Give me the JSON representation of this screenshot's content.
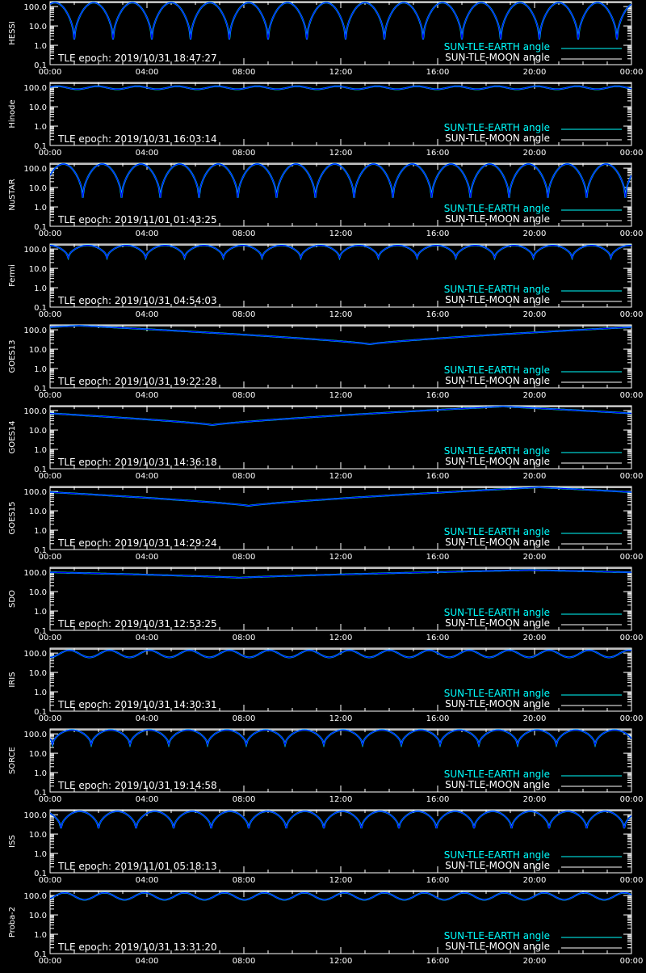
{
  "figure": {
    "background": "#000000",
    "axis_color": "#ffffff",
    "earth_color": "#00ffff",
    "moon_color": "#ffffff",
    "curve_color": "#0000ff"
  },
  "chart_data": [
    {
      "type": "line",
      "ylabel": "HESSI",
      "epoch_text": "TLE epoch: 2019/10/31 18:47:27",
      "x_ticks": [
        "00:00",
        "04:00",
        "08:00",
        "12:00",
        "16:00",
        "20:00",
        "00:00"
      ],
      "y_ticks": [
        "0.1",
        "1.0",
        "10.0",
        "100.0"
      ],
      "y_scale": "log",
      "ylim": [
        0.1,
        180
      ],
      "legend": [
        "SUN-TLE-EARTH angle",
        "SUN-TLE-MOON angle"
      ],
      "series": [
        {
          "kind": "periodic-dips",
          "period_hours": 1.6,
          "phase_hours": 1.0,
          "max": 160,
          "min": 2.0
        },
        {
          "kind": "moon",
          "value": 160
        }
      ]
    },
    {
      "type": "line",
      "ylabel": "Hinode",
      "epoch_text": "TLE epoch: 2019/10/31 16:03:14",
      "x_ticks": [
        "00:00",
        "04:00",
        "08:00",
        "12:00",
        "16:00",
        "20:00",
        "00:00"
      ],
      "y_ticks": [
        "0.1",
        "1.0",
        "10.0",
        "100.0"
      ],
      "y_scale": "log",
      "ylim": [
        0.1,
        180
      ],
      "legend": [
        "SUN-TLE-EARTH angle",
        "SUN-TLE-MOON angle"
      ],
      "series": [
        {
          "kind": "gentle",
          "period_hours": 1.65,
          "phase_hours": 0.3,
          "max": 115,
          "min": 80
        },
        {
          "kind": "moon",
          "value": 160
        }
      ]
    },
    {
      "type": "line",
      "ylabel": "NuSTAR",
      "epoch_text": "TLE epoch: 2019/11/01 01:43:25",
      "x_ticks": [
        "00:00",
        "04:00",
        "08:00",
        "12:00",
        "16:00",
        "20:00",
        "00:00"
      ],
      "y_ticks": [
        "0.1",
        "1.0",
        "10.0",
        "100.0"
      ],
      "y_scale": "log",
      "ylim": [
        0.1,
        180
      ],
      "legend": [
        "SUN-TLE-EARTH angle",
        "SUN-TLE-MOON angle"
      ],
      "series": [
        {
          "kind": "periodic-dips",
          "period_hours": 1.6,
          "phase_hours": 1.35,
          "max": 165,
          "min": 3.0
        },
        {
          "kind": "moon",
          "value": 160
        }
      ]
    },
    {
      "type": "line",
      "ylabel": "Fermi",
      "epoch_text": "TLE epoch: 2019/10/31 04:54:03",
      "x_ticks": [
        "00:00",
        "04:00",
        "08:00",
        "12:00",
        "16:00",
        "20:00",
        "00:00"
      ],
      "y_ticks": [
        "0.1",
        "1.0",
        "10.0",
        "100.0"
      ],
      "y_scale": "log",
      "ylim": [
        0.1,
        180
      ],
      "legend": [
        "SUN-TLE-EARTH angle",
        "SUN-TLE-MOON angle"
      ],
      "series": [
        {
          "kind": "periodic-dips",
          "period_hours": 1.6,
          "phase_hours": 0.75,
          "max": 155,
          "min": 35
        },
        {
          "kind": "moon",
          "value": 160
        }
      ]
    },
    {
      "type": "line",
      "ylabel": "GOES13",
      "epoch_text": "TLE epoch: 2019/10/31 19:22:28",
      "x_ticks": [
        "00:00",
        "04:00",
        "08:00",
        "12:00",
        "16:00",
        "20:00",
        "00:00"
      ],
      "y_ticks": [
        "0.1",
        "1.0",
        "10.0",
        "100.0"
      ],
      "y_scale": "log",
      "ylim": [
        0.1,
        180
      ],
      "legend": [
        "SUN-TLE-EARTH angle",
        "SUN-TLE-MOON angle"
      ],
      "series": [
        {
          "kind": "daily-dip",
          "dip_hour": 13.2,
          "max": 165,
          "min": 18
        },
        {
          "kind": "moon",
          "value": 160
        }
      ]
    },
    {
      "type": "line",
      "ylabel": "GOES14",
      "epoch_text": "TLE epoch: 2019/10/31 14:36:18",
      "x_ticks": [
        "00:00",
        "04:00",
        "08:00",
        "12:00",
        "16:00",
        "20:00",
        "00:00"
      ],
      "y_ticks": [
        "0.1",
        "1.0",
        "10.0",
        "100.0"
      ],
      "y_scale": "log",
      "ylim": [
        0.1,
        180
      ],
      "legend": [
        "SUN-TLE-EARTH angle",
        "SUN-TLE-MOON angle"
      ],
      "series": [
        {
          "kind": "daily-dip",
          "dip_hour": 6.7,
          "max": 165,
          "min": 18
        },
        {
          "kind": "moon",
          "value": 160
        }
      ]
    },
    {
      "type": "line",
      "ylabel": "GOES15",
      "epoch_text": "TLE epoch: 2019/10/31 14:29:24",
      "x_ticks": [
        "00:00",
        "04:00",
        "08:00",
        "12:00",
        "16:00",
        "20:00",
        "00:00"
      ],
      "y_ticks": [
        "0.1",
        "1.0",
        "10.0",
        "100.0"
      ],
      "y_scale": "log",
      "ylim": [
        0.1,
        180
      ],
      "legend": [
        "SUN-TLE-EARTH angle",
        "SUN-TLE-MOON angle"
      ],
      "series": [
        {
          "kind": "daily-dip",
          "dip_hour": 8.2,
          "max": 165,
          "min": 18
        },
        {
          "kind": "moon",
          "value": 160
        }
      ]
    },
    {
      "type": "line",
      "ylabel": "SDO",
      "epoch_text": "TLE epoch: 2019/10/31 12:53:25",
      "x_ticks": [
        "00:00",
        "04:00",
        "08:00",
        "12:00",
        "16:00",
        "20:00",
        "00:00"
      ],
      "y_ticks": [
        "0.1",
        "1.0",
        "10.0",
        "100.0"
      ],
      "y_scale": "log",
      "ylim": [
        0.1,
        180
      ],
      "legend": [
        "SUN-TLE-EARTH angle",
        "SUN-TLE-MOON angle"
      ],
      "series": [
        {
          "kind": "daily-dip",
          "dip_hour": 7.8,
          "max": 130,
          "min": 52
        },
        {
          "kind": "moon",
          "value": 160
        }
      ]
    },
    {
      "type": "line",
      "ylabel": "IRIS",
      "epoch_text": "TLE epoch: 2019/10/31 14:30:31",
      "x_ticks": [
        "00:00",
        "04:00",
        "08:00",
        "12:00",
        "16:00",
        "20:00",
        "00:00"
      ],
      "y_ticks": [
        "0.1",
        "1.0",
        "10.0",
        "100.0"
      ],
      "y_scale": "log",
      "ylim": [
        0.1,
        180
      ],
      "legend": [
        "SUN-TLE-EARTH angle",
        "SUN-TLE-MOON angle"
      ],
      "series": [
        {
          "kind": "gentle",
          "period_hours": 1.65,
          "phase_hours": 0.8,
          "max": 140,
          "min": 60
        },
        {
          "kind": "moon",
          "value": 160
        }
      ]
    },
    {
      "type": "line",
      "ylabel": "SORCE",
      "epoch_text": "TLE epoch: 2019/10/31 19:14:58",
      "x_ticks": [
        "00:00",
        "04:00",
        "08:00",
        "12:00",
        "16:00",
        "20:00",
        "00:00"
      ],
      "y_ticks": [
        "0.1",
        "1.0",
        "10.0",
        "100.0"
      ],
      "y_scale": "log",
      "ylim": [
        0.1,
        180
      ],
      "legend": [
        "SUN-TLE-EARTH angle",
        "SUN-TLE-MOON angle"
      ],
      "series": [
        {
          "kind": "periodic-dips",
          "period_hours": 1.6,
          "phase_hours": 0.1,
          "max": 160,
          "min": 28
        },
        {
          "kind": "moon",
          "value": 160
        }
      ]
    },
    {
      "type": "line",
      "ylabel": "ISS",
      "epoch_text": "TLE epoch: 2019/11/01 05:18:13",
      "x_ticks": [
        "00:00",
        "04:00",
        "08:00",
        "12:00",
        "16:00",
        "20:00",
        "00:00"
      ],
      "y_ticks": [
        "0.1",
        "1.0",
        "10.0",
        "100.0"
      ],
      "y_scale": "log",
      "ylim": [
        0.1,
        180
      ],
      "legend": [
        "SUN-TLE-EARTH angle",
        "SUN-TLE-MOON angle"
      ],
      "series": [
        {
          "kind": "periodic-dips",
          "period_hours": 1.55,
          "phase_hours": 0.45,
          "max": 150,
          "min": 20
        },
        {
          "kind": "moon",
          "value": 160
        }
      ]
    },
    {
      "type": "line",
      "ylabel": "Proba-2",
      "epoch_text": "TLE epoch: 2019/10/31 13:31:20",
      "x_ticks": [
        "00:00",
        "04:00",
        "08:00",
        "12:00",
        "16:00",
        "20:00",
        "00:00"
      ],
      "y_ticks": [
        "0.1",
        "1.0",
        "10.0",
        "100.0"
      ],
      "y_scale": "log",
      "ylim": [
        0.1,
        180
      ],
      "legend": [
        "SUN-TLE-EARTH angle",
        "SUN-TLE-MOON angle"
      ],
      "series": [
        {
          "kind": "gentle",
          "period_hours": 1.65,
          "phase_hours": 0.6,
          "max": 140,
          "min": 60
        },
        {
          "kind": "moon",
          "value": 160
        }
      ]
    }
  ]
}
